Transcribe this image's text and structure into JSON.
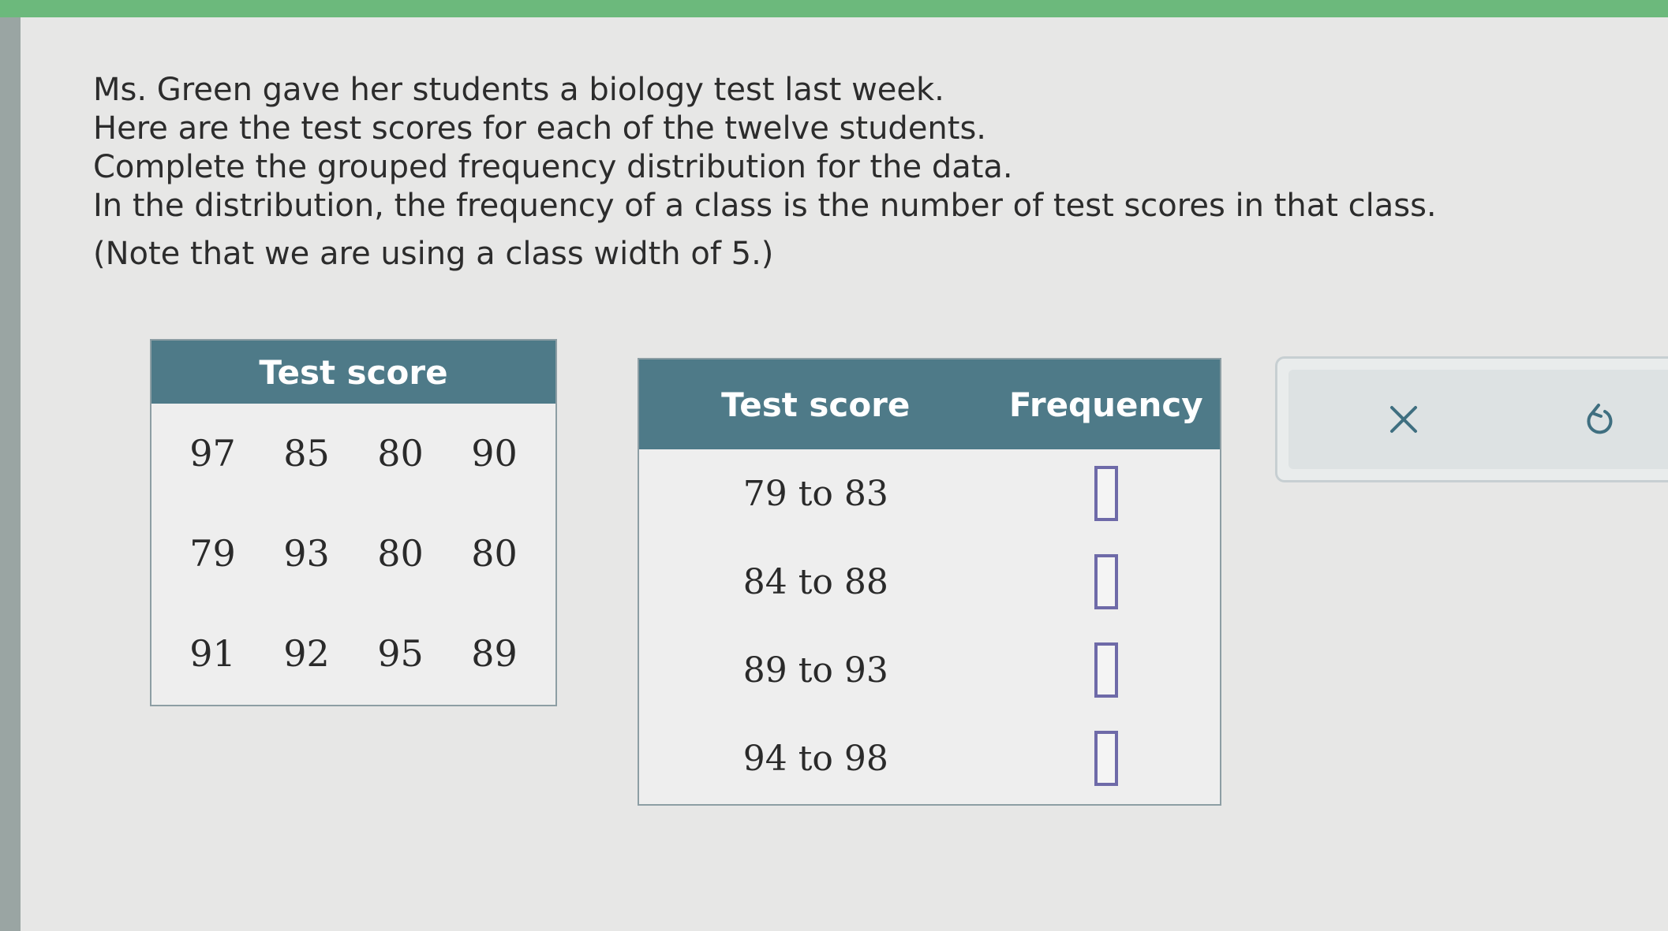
{
  "prompt": {
    "lines": [
      "Ms. Green gave her students a biology test last week.",
      "Here are the test scores for each of the twelve students.",
      "Complete the grouped frequency distribution for the data.",
      "In the distribution, the frequency of a class is the number of test scores in that class."
    ],
    "note": "(Note that we are using a class width of 5.)"
  },
  "data_table": {
    "header": "Test score",
    "rows": [
      [
        "97",
        "85",
        "80",
        "90"
      ],
      [
        "79",
        "93",
        "80",
        "80"
      ],
      [
        "91",
        "92",
        "95",
        "89"
      ]
    ]
  },
  "freq_table": {
    "headers": [
      "Test score",
      "Frequency"
    ],
    "rows": [
      {
        "range": "79 to 83",
        "value": ""
      },
      {
        "range": "84 to 88",
        "value": ""
      },
      {
        "range": "89 to 93",
        "value": ""
      },
      {
        "range": "94 to 98",
        "value": ""
      }
    ]
  },
  "actions": {
    "clear_icon": "close-icon",
    "undo_icon": "undo-icon",
    "icon_color": "#3f6f80"
  },
  "colors": {
    "header_bg": "#4e7a88",
    "input_border": "#6e6aa8",
    "top_bar": "#6cb97c"
  }
}
